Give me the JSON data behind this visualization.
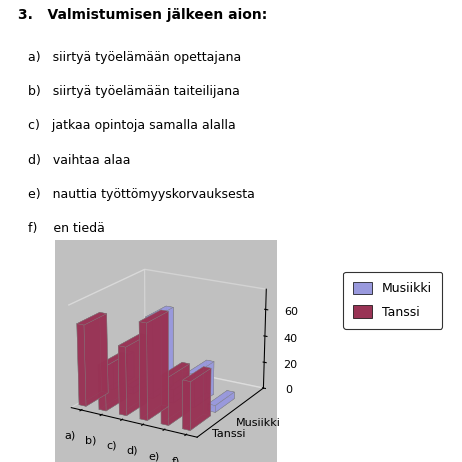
{
  "title_text": "3.   Valmistumisen jälkeen aion:",
  "items": [
    "a)   siirtyä työelämään opettajana",
    "b)   siirtyä työelämään taiteilijana",
    "c)   jatkaa opintoja samalla alalla",
    "d)   vaihtaa alaa",
    "e)   nauttia työttömyyskorvauksesta",
    "f)    en tiedä"
  ],
  "categories": [
    "a)",
    "b)",
    "c)",
    "d)",
    "e)",
    "f)"
  ],
  "musiikki": [
    20,
    5,
    60,
    10,
    25,
    5
  ],
  "tanssi": [
    60,
    33,
    50,
    70,
    35,
    35
  ],
  "musiikki_color": "#9999DD",
  "tanssi_color": "#993355",
  "bg_color": "#C0C0C0",
  "ylim": [
    0,
    70
  ],
  "yticks": [
    0,
    20,
    40,
    60
  ],
  "legend_musiikki": "Musiikki",
  "legend_tanssi": "Tanssi",
  "axis_label_musiikki": "Musiikki",
  "axis_label_tanssi": "Tanssi"
}
